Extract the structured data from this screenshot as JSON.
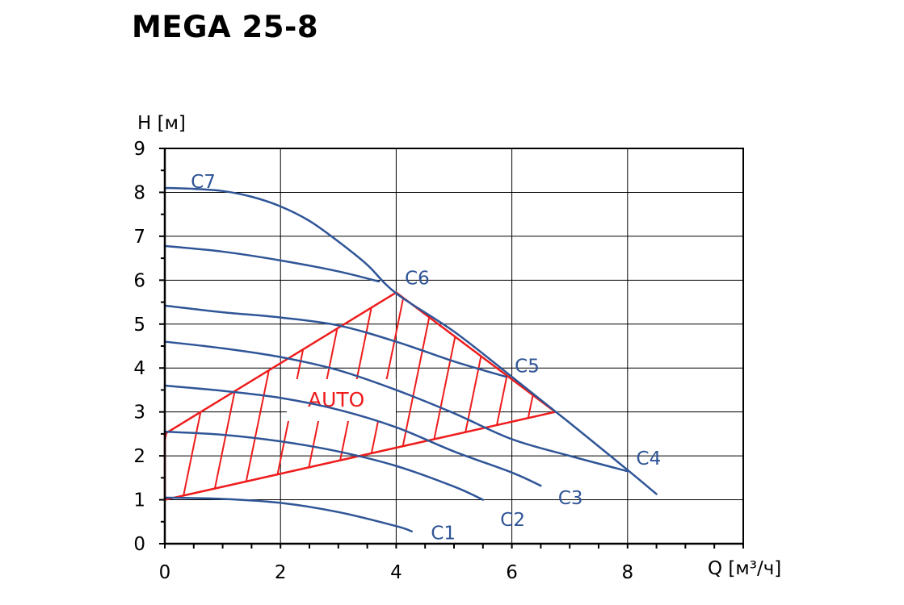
{
  "title": "MEGA 25-8",
  "colors": {
    "curve": "#2f5597",
    "auto": "#ee1c1c",
    "grid": "#000000"
  },
  "chart_data": {
    "type": "line",
    "title": "MEGA 25-8",
    "xlabel": "Q [м³/ч]",
    "ylabel": "H [м]",
    "xlim": [
      0,
      10
    ],
    "ylim": [
      0,
      9
    ],
    "x_ticks": [
      0,
      2,
      4,
      6,
      8
    ],
    "y_ticks": [
      0,
      1,
      2,
      3,
      4,
      5,
      6,
      7,
      8,
      9
    ],
    "grid": true,
    "series": [
      {
        "name": "C1",
        "points": [
          [
            0,
            1.05
          ],
          [
            1,
            1.02
          ],
          [
            2,
            0.93
          ],
          [
            3,
            0.72
          ],
          [
            4,
            0.4
          ],
          [
            4.27,
            0.28
          ]
        ]
      },
      {
        "name": "C2",
        "points": [
          [
            0,
            2.55
          ],
          [
            1,
            2.48
          ],
          [
            2,
            2.33
          ],
          [
            3,
            2.1
          ],
          [
            4,
            1.77
          ],
          [
            5,
            1.3
          ],
          [
            5.5,
            1.0
          ]
        ]
      },
      {
        "name": "C3",
        "points": [
          [
            0,
            3.6
          ],
          [
            1,
            3.48
          ],
          [
            2,
            3.32
          ],
          [
            3,
            3.05
          ],
          [
            4,
            2.65
          ],
          [
            5,
            2.1
          ],
          [
            6,
            1.62
          ],
          [
            6.5,
            1.32
          ]
        ]
      },
      {
        "name": "C4",
        "points": [
          [
            0,
            4.6
          ],
          [
            1,
            4.45
          ],
          [
            2,
            4.25
          ],
          [
            3,
            3.95
          ],
          [
            4,
            3.5
          ],
          [
            5,
            2.97
          ],
          [
            6,
            2.38
          ],
          [
            7,
            2.0
          ],
          [
            8,
            1.65
          ]
        ]
      },
      {
        "name": "C5",
        "points": [
          [
            0,
            5.42
          ],
          [
            1,
            5.27
          ],
          [
            2,
            5.15
          ],
          [
            3,
            4.97
          ],
          [
            4,
            4.6
          ],
          [
            5,
            4.15
          ],
          [
            5.9,
            3.8
          ]
        ]
      },
      {
        "name": "C6",
        "points": [
          [
            0,
            6.78
          ],
          [
            1,
            6.65
          ],
          [
            2,
            6.45
          ],
          [
            3,
            6.2
          ],
          [
            3.7,
            5.97
          ]
        ]
      },
      {
        "name": "C7",
        "points": [
          [
            0,
            8.1
          ],
          [
            0.5,
            8.08
          ],
          [
            1,
            8.03
          ],
          [
            1.5,
            7.9
          ],
          [
            2,
            7.68
          ],
          [
            2.5,
            7.35
          ],
          [
            3,
            6.88
          ],
          [
            3.5,
            6.35
          ],
          [
            4,
            5.7
          ],
          [
            5,
            4.83
          ],
          [
            6,
            3.8
          ],
          [
            7,
            2.75
          ],
          [
            8,
            1.68
          ],
          [
            8.5,
            1.13
          ]
        ]
      }
    ],
    "labels": [
      "C1",
      "C2",
      "C3",
      "C4",
      "C5",
      "C6",
      "C7"
    ],
    "auto_region": {
      "label": "AUTO",
      "polygon": [
        [
          0,
          2.5
        ],
        [
          4,
          5.72
        ],
        [
          6.75,
          3.0
        ],
        [
          0,
          1.0
        ]
      ]
    }
  }
}
